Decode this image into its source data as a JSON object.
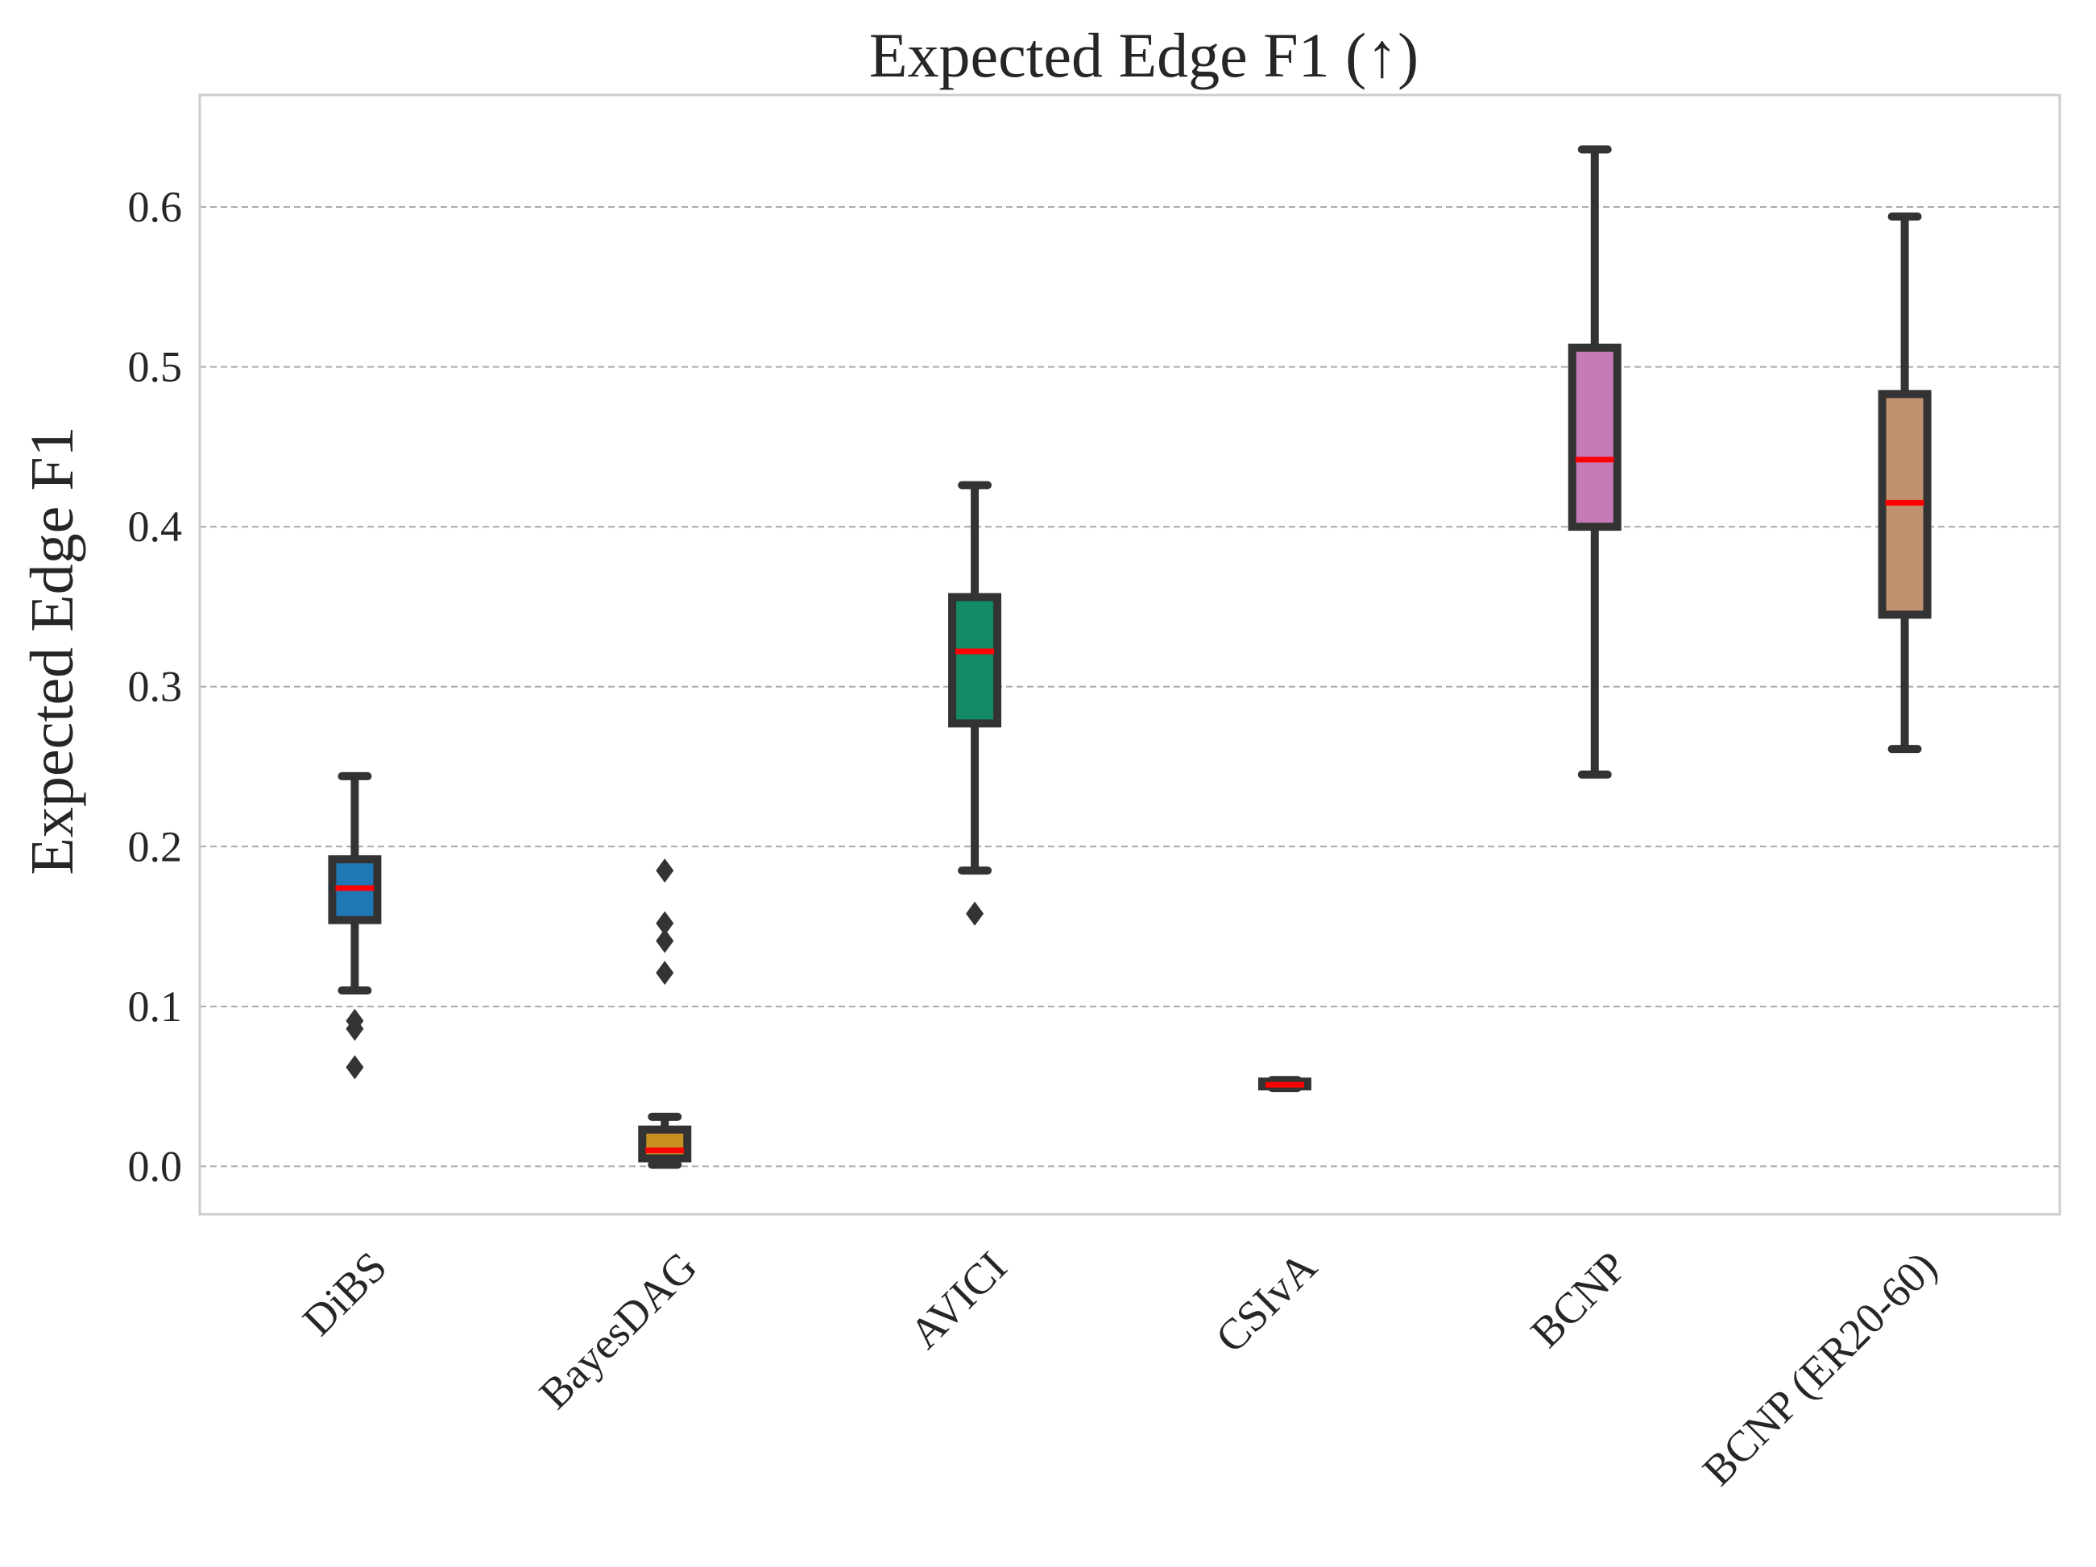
{
  "chart_data": {
    "type": "box",
    "title": "Expected Edge F1 (↑)",
    "xlabel": "",
    "ylabel": "Expected Edge F1",
    "ylim": [
      -0.03,
      0.67
    ],
    "yticks": [
      0.0,
      0.1,
      0.2,
      0.3,
      0.4,
      0.5,
      0.6
    ],
    "ytick_labels": [
      "0.0",
      "0.1",
      "0.2",
      "0.3",
      "0.4",
      "0.5",
      "0.6"
    ],
    "grid": "horizontal-dashed",
    "median_color": "#ff0000",
    "categories": [
      "DiBS",
      "BayesDAG",
      "AVICI",
      "CSIvA",
      "BCNP",
      "BCNP (ER20-60)"
    ],
    "boxes": [
      {
        "label": "DiBS",
        "color": "#1f77b4",
        "whisker_low": 0.11,
        "q1": 0.154,
        "median": 0.174,
        "q3": 0.192,
        "whisker_high": 0.244,
        "outliers": [
          0.091,
          0.086,
          0.062
        ]
      },
      {
        "label": "BayesDAG",
        "color": "#c8901e",
        "whisker_low": 0.001,
        "q1": 0.005,
        "median": 0.01,
        "q3": 0.023,
        "whisker_high": 0.031,
        "outliers": [
          0.185,
          0.152,
          0.141,
          0.121
        ]
      },
      {
        "label": "AVICI",
        "color": "#128a65",
        "whisker_low": 0.185,
        "q1": 0.277,
        "median": 0.322,
        "q3": 0.356,
        "whisker_high": 0.426,
        "outliers": [
          0.158
        ]
      },
      {
        "label": "CSIvA",
        "color": "#d05a20",
        "whisker_low": 0.049,
        "q1": 0.05,
        "median": 0.051,
        "q3": 0.053,
        "whisker_high": 0.054,
        "outliers": []
      },
      {
        "label": "BCNP",
        "color": "#c47ab5",
        "whisker_low": 0.245,
        "q1": 0.4,
        "median": 0.442,
        "q3": 0.512,
        "whisker_high": 0.636,
        "outliers": []
      },
      {
        "label": "BCNP (ER20-60)",
        "color": "#c09270",
        "whisker_low": 0.261,
        "q1": 0.345,
        "median": 0.415,
        "q3": 0.483,
        "whisker_high": 0.594,
        "outliers": []
      }
    ]
  }
}
